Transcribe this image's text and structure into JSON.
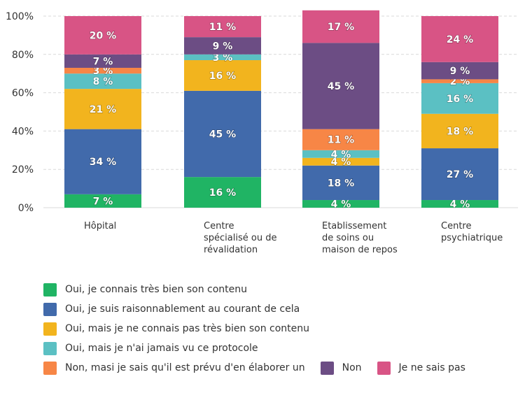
{
  "chart_data": {
    "type": "bar",
    "stacked": true,
    "orientation": "vertical",
    "categories": [
      [
        "Hôpital"
      ],
      [
        "Centre",
        "spécialisé ou de",
        "révalidation"
      ],
      [
        "Etablissement",
        "de soins ou",
        "maison de repos"
      ],
      [
        "Centre",
        "psychiatrique"
      ]
    ],
    "y_ticks": [
      "0%",
      "20%",
      "40%",
      "60%",
      "80%",
      "100%"
    ],
    "ylim": [
      0,
      100
    ],
    "grid": true,
    "legend_position": "bottom",
    "series": [
      {
        "name": "Oui, je connais très bien son contenu",
        "color": "#20b464",
        "values": [
          7,
          16,
          4,
          4
        ],
        "labels": [
          "7 %",
          "16 %",
          "4 %",
          "4 %"
        ]
      },
      {
        "name": "Oui, je suis raisonnablement au courant de cela",
        "color": "#416aab",
        "values": [
          34,
          45,
          18,
          27
        ],
        "labels": [
          "34 %",
          "45 %",
          "18 %",
          "27 %"
        ]
      },
      {
        "name": "Oui, mais je ne connais pas très bien son contenu",
        "color": "#f2b41e",
        "values": [
          21,
          16,
          4,
          18
        ],
        "labels": [
          "21 %",
          "16 %",
          "4 %",
          "18 %"
        ]
      },
      {
        "name": "Oui, mais je n'ai jamais vu ce protocole",
        "color": "#5bc0c3",
        "values": [
          8,
          3,
          4,
          16
        ],
        "labels": [
          "8 %",
          "3 %",
          "4 %",
          "16 %"
        ]
      },
      {
        "name": "Non, masi je sais qu'il est prévu d'en élaborer un",
        "color": "#f78646",
        "values": [
          3,
          0,
          11,
          2
        ],
        "labels": [
          "3 %",
          "",
          "11 %",
          "2 %"
        ]
      },
      {
        "name": "Non",
        "color": "#6c4d84",
        "values": [
          7,
          9,
          45,
          9
        ],
        "labels": [
          "7 %",
          "9 %",
          "45 %",
          "9 %"
        ]
      },
      {
        "name": "Je ne sais pas",
        "color": "#d85485",
        "values": [
          20,
          11,
          17,
          24
        ],
        "labels": [
          "20 %",
          "11 %",
          "17 %",
          "24 %"
        ]
      }
    ],
    "legend_rows": [
      [
        0
      ],
      [
        1
      ],
      [
        2
      ],
      [
        3
      ],
      [
        4,
        5,
        6
      ]
    ]
  }
}
